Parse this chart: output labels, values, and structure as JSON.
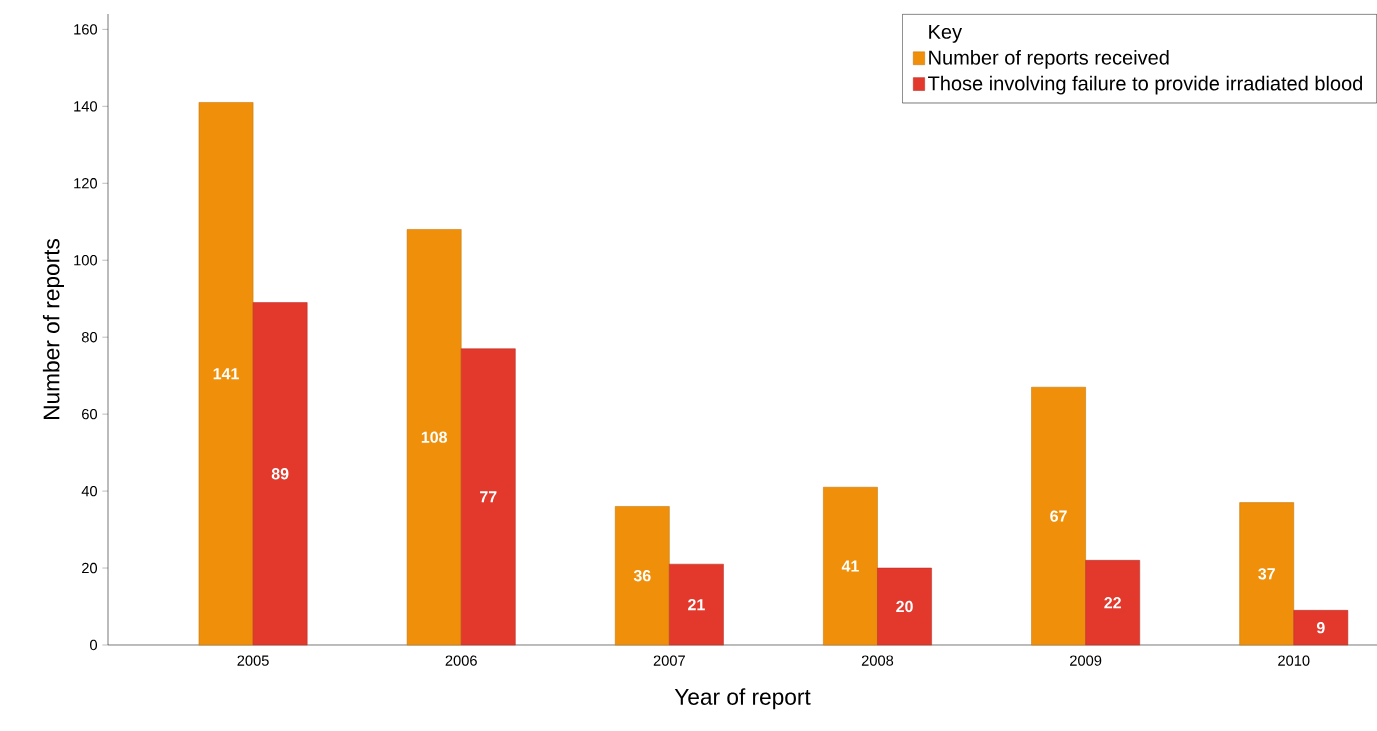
{
  "chart_data": {
    "type": "bar",
    "xlabel": "Year of report",
    "ylabel": "Number of reports",
    "legend_title": "Key",
    "categories": [
      "2005",
      "2006",
      "2007",
      "2008",
      "2009",
      "2010"
    ],
    "series": [
      {
        "name": "Number of reports received",
        "color": "#f0900a",
        "values": [
          141,
          108,
          36,
          41,
          67,
          37
        ]
      },
      {
        "name": "Those involving failure to provide irradiated blood",
        "color": "#e3392d",
        "values": [
          89,
          77,
          21,
          20,
          22,
          9
        ]
      }
    ],
    "ylim": [
      0,
      164
    ],
    "yticks": [
      0,
      20,
      40,
      60,
      80,
      100,
      120,
      140,
      160
    ],
    "data_labels": true,
    "legend": "top right",
    "grid": false
  }
}
